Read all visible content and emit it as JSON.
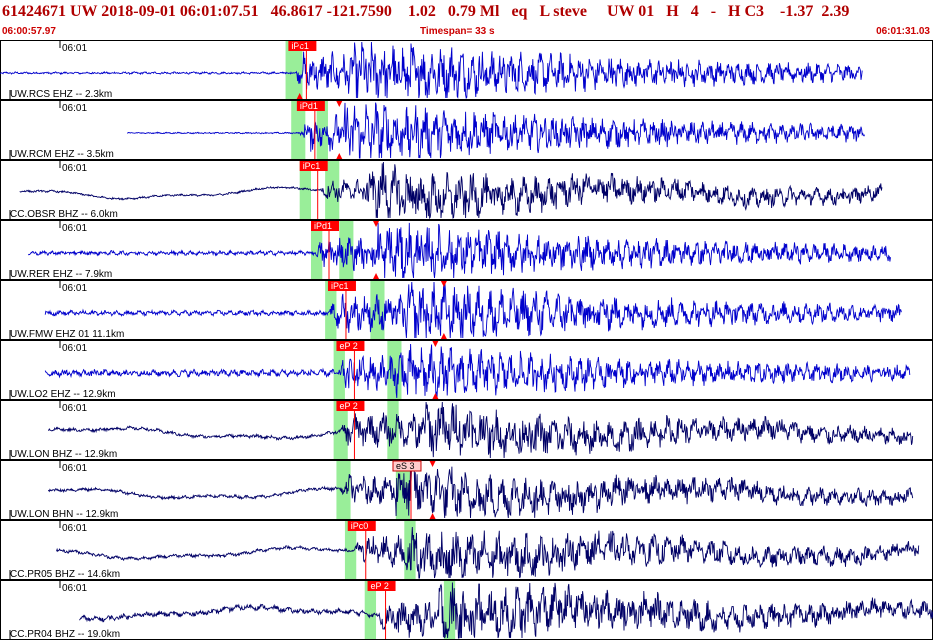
{
  "header": {
    "title": "61424671 UW 2018-09-01 06:01:07.51   46.8617 -121.7590    1.02   0.79 Ml   eq   L steve     UW 01   H   4   -   H C3    -1.37  2.39",
    "start_time": "06:00:57.97",
    "timespan": "Timespan=  33 s",
    "end_time": "06:01:31.03"
  },
  "colors": {
    "trace_blue": "#0000cc",
    "trace_navy": "#000066",
    "pick_red": "#ff0000",
    "window_green": "#99ee99",
    "title_red": "#b00000"
  },
  "chart_data": {
    "type": "line",
    "x_unit": "seconds",
    "x_range": [
      0,
      33
    ],
    "panels": [
      {
        "time_label": "06:01",
        "label": "UW.RCS EHZ -- 2.3km",
        "trace_color": "#0000cc",
        "trace_start": 0,
        "trace_end": 30.5,
        "onset": 10.4,
        "s_onset": 12.5,
        "noise": 0.03,
        "amp_p": 0.55,
        "amp_s": 0.9,
        "period": 0.35,
        "picks": [
          {
            "label": "iPc1",
            "t": 10.2,
            "style": "red"
          }
        ],
        "s_marker": 10.6,
        "green": [
          [
            10.1,
            10.7
          ]
        ]
      },
      {
        "time_label": "06:01",
        "label": "UW.RCM EHZ -- 3.5km",
        "trace_color": "#0000cc",
        "trace_start": 4.5,
        "trace_end": 30.6,
        "onset": 10.6,
        "s_onset": 12.2,
        "noise": 0.02,
        "amp_p": 0.5,
        "amp_s": 0.85,
        "period": 0.35,
        "picks": [
          {
            "label": "iPd1",
            "t": 10.5,
            "style": "red"
          }
        ],
        "s_marker": 12.0,
        "green": [
          [
            10.3,
            10.8
          ],
          [
            11.2,
            11.6
          ]
        ]
      },
      {
        "time_label": "06:01",
        "label": "CC.OBSR BHZ -- 6.0km",
        "trace_color": "#000066",
        "trace_start": 0.7,
        "trace_end": 31.2,
        "onset": 11.3,
        "s_onset": 13.0,
        "noise": 0.03,
        "amp_p": 0.3,
        "amp_s": 0.75,
        "period": 0.45,
        "picks": [
          {
            "label": "iPc1",
            "t": 10.6,
            "style": "red"
          }
        ],
        "s_marker": 0,
        "green": [
          [
            10.6,
            11.0
          ],
          [
            11.5,
            12.0
          ]
        ]
      },
      {
        "time_label": "06:01",
        "label": "UW.RER EHZ -- 7.9km",
        "trace_color": "#0000cc",
        "trace_start": 1.0,
        "trace_end": 31.5,
        "onset": 11.1,
        "s_onset": 13.3,
        "noise": 0.06,
        "amp_p": 0.45,
        "amp_s": 0.8,
        "period": 0.35,
        "picks": [
          {
            "label": "iPd1",
            "t": 11.0,
            "style": "red"
          }
        ],
        "s_marker": 13.3,
        "green": [
          [
            11.0,
            11.4
          ],
          [
            12.0,
            12.5
          ]
        ]
      },
      {
        "time_label": "06:01",
        "label": "UW.FMW EHZ 01 11.1km",
        "trace_color": "#0000cc",
        "trace_start": 1.6,
        "trace_end": 31.9,
        "onset": 11.6,
        "s_onset": 14.3,
        "noise": 0.07,
        "amp_p": 0.5,
        "amp_s": 0.8,
        "period": 0.4,
        "picks": [
          {
            "label": "iPc1",
            "t": 11.6,
            "style": "red"
          }
        ],
        "s_marker": 15.7,
        "green": [
          [
            11.5,
            11.9
          ],
          [
            13.1,
            13.6
          ]
        ]
      },
      {
        "time_label": "06:01",
        "label": "UW.LO2 EHZ -- 12.9km",
        "trace_color": "#0000cc",
        "trace_start": 1.6,
        "trace_end": 32.2,
        "onset": 11.9,
        "s_onset": 14.0,
        "noise": 0.1,
        "amp_p": 0.5,
        "amp_s": 0.7,
        "period": 0.35,
        "picks": [
          {
            "label": "eP 2",
            "t": 11.9,
            "style": "red"
          }
        ],
        "s_marker": 15.4,
        "green": [
          [
            11.8,
            12.2
          ],
          [
            13.7,
            14.2
          ]
        ]
      },
      {
        "time_label": "06:01",
        "label": "UW.LON BHZ -- 12.9km",
        "trace_color": "#000066",
        "trace_start": 1.7,
        "trace_end": 32.3,
        "onset": 12.0,
        "s_onset": 14.7,
        "noise": 0.05,
        "amp_p": 0.45,
        "amp_s": 0.75,
        "period": 0.5,
        "picks": [
          {
            "label": "eP 2",
            "t": 11.9,
            "style": "red"
          }
        ],
        "s_marker": 0,
        "green": [
          [
            11.8,
            12.3
          ],
          [
            13.7,
            14.1
          ]
        ]
      },
      {
        "time_label": "06:01",
        "label": "UW.LON BHN -- 12.9km",
        "trace_color": "#000066",
        "trace_start": 1.7,
        "trace_end": 32.3,
        "onset": 12.0,
        "s_onset": 14.0,
        "noise": 0.05,
        "amp_p": 0.4,
        "amp_s": 0.75,
        "period": 0.45,
        "picks": [
          {
            "label": "eS 3",
            "t": 13.9,
            "style": "pink"
          }
        ],
        "s_marker": 15.3,
        "green": [
          [
            11.9,
            12.4
          ],
          [
            14.0,
            14.5
          ]
        ]
      },
      {
        "time_label": "06:01",
        "label": "CC.PR05 BHZ -- 14.6km",
        "trace_color": "#000066",
        "trace_start": 2.0,
        "trace_end": 32.5,
        "onset": 12.5,
        "s_onset": 14.5,
        "noise": 0.05,
        "amp_p": 0.45,
        "amp_s": 0.75,
        "period": 0.5,
        "picks": [
          {
            "label": "iPc0",
            "t": 12.3,
            "style": "red"
          }
        ],
        "s_marker": 0,
        "green": [
          [
            12.2,
            12.6
          ],
          [
            14.3,
            14.7
          ]
        ]
      },
      {
        "time_label": "06:01",
        "label": "CC.PR04 BHZ -- 19.0km",
        "trace_color": "#000066",
        "trace_start": 2.8,
        "trace_end": 33.0,
        "onset": 13.3,
        "s_onset": 15.5,
        "noise": 0.08,
        "amp_p": 0.5,
        "amp_s": 0.85,
        "period": 0.45,
        "picks": [
          {
            "label": "eP 2",
            "t": 13.0,
            "style": "red"
          }
        ],
        "s_marker": 0,
        "green": [
          [
            12.9,
            13.3
          ],
          [
            15.7,
            16.1
          ]
        ]
      }
    ]
  }
}
